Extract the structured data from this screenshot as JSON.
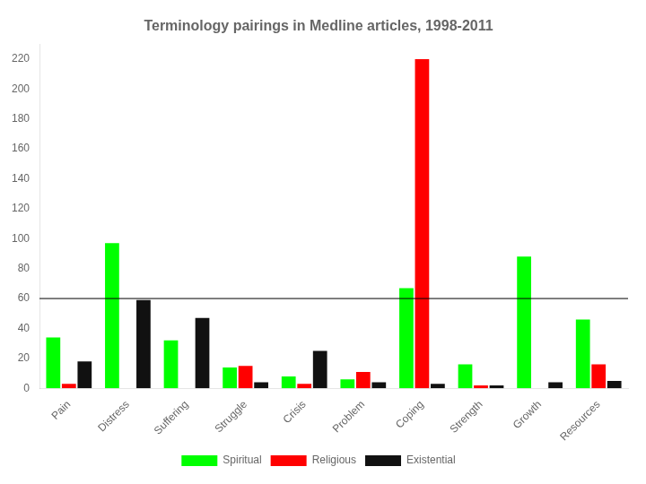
{
  "chart_data": {
    "type": "bar",
    "title": "Terminology pairings in Medline articles, 1998-2011",
    "categories": [
      "Pain",
      "Distress",
      "Suffering",
      "Struggle",
      "Crisis",
      "Problem",
      "Coping",
      "Strength",
      "Growth",
      "Resources"
    ],
    "series": [
      {
        "name": "Spiritual",
        "color": "#00FF00",
        "values": [
          34,
          97,
          32,
          14,
          8,
          6,
          67,
          16,
          88,
          46
        ]
      },
      {
        "name": "Religious",
        "color": "#FF0000",
        "values": [
          3,
          0,
          0,
          15,
          3,
          11,
          220,
          2,
          0,
          16
        ]
      },
      {
        "name": "Existential",
        "color": "#111111",
        "values": [
          18,
          59,
          47,
          4,
          25,
          4,
          3,
          2,
          4,
          5
        ]
      }
    ],
    "ylim": [
      0,
      230
    ],
    "yticks": [
      0,
      20,
      40,
      60,
      80,
      100,
      120,
      140,
      160,
      180,
      200,
      220
    ],
    "hline": 60,
    "grid": false,
    "legend": "bottom"
  }
}
